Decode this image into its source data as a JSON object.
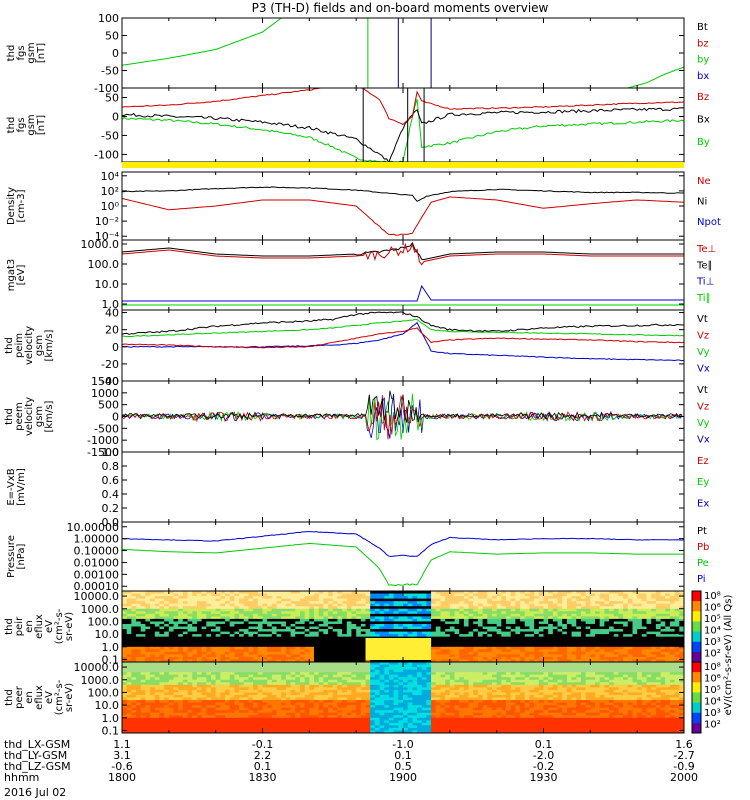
{
  "title": "P3 (TH-D) fields and on-board moments overview",
  "panels": [
    {
      "id": "fgs1",
      "ylabel": [
        "thd",
        "fgs",
        "gsm",
        "[nT]"
      ],
      "ticks": [
        {
          "v": 100,
          "t": "100"
        },
        {
          "v": 50,
          "t": "50"
        },
        {
          "v": 0,
          "t": "0"
        },
        {
          "v": -50,
          "t": "-50"
        },
        {
          "v": -100,
          "t": "-100"
        }
      ],
      "ylim": [
        -100,
        100
      ],
      "log": false,
      "legend": [
        {
          "t": "Bt",
          "c": "#000000"
        },
        {
          "t": "bz",
          "c": "#cc0000"
        },
        {
          "t": "by",
          "c": "#00cc00"
        },
        {
          "t": "bx",
          "c": "#0000cc"
        }
      ]
    },
    {
      "id": "fgs2",
      "ylabel": [
        "thd",
        "fgs",
        "gsm",
        "[nT]"
      ],
      "ticks": [
        {
          "v": 50,
          "t": "50"
        },
        {
          "v": 0,
          "t": "0"
        },
        {
          "v": -50,
          "t": "-50"
        },
        {
          "v": -100,
          "t": "-100"
        }
      ],
      "ylim": [
        -120,
        75
      ],
      "log": false,
      "legend": [
        {
          "t": "Bz",
          "c": "#cc0000"
        },
        {
          "t": "Bx",
          "c": "#000000"
        },
        {
          "t": "By",
          "c": "#00cc00"
        }
      ]
    },
    {
      "id": "dens",
      "ylabel": [
        "Density",
        "[cm-3]"
      ],
      "ticks": [
        {
          "v": 4,
          "t": "10⁴"
        },
        {
          "v": 2,
          "t": "10²"
        },
        {
          "v": 0,
          "t": "10⁰"
        },
        {
          "v": -2,
          "t": "10⁻²"
        },
        {
          "v": -4,
          "t": "10⁻⁴"
        }
      ],
      "ylim": [
        -4.5,
        4.5
      ],
      "log": true,
      "legend": [
        {
          "t": "Ne",
          "c": "#cc0000"
        },
        {
          "t": "Ni",
          "c": "#000000"
        },
        {
          "t": "Npot",
          "c": "#0000cc"
        }
      ]
    },
    {
      "id": "temp",
      "ylabel": [
        "mgat3",
        "[eV]"
      ],
      "ticks": [
        {
          "v": 3,
          "t": "1000.0"
        },
        {
          "v": 2,
          "t": "100.0"
        },
        {
          "v": 1,
          "t": "10.0"
        },
        {
          "v": 0,
          "t": "1.0"
        }
      ],
      "ylim": [
        -0.3,
        3.2
      ],
      "log": true,
      "legend": [
        {
          "t": "Te⊥",
          "c": "#cc0000"
        },
        {
          "t": "Te∥",
          "c": "#000000"
        },
        {
          "t": "Ti⊥",
          "c": "#0000cc"
        },
        {
          "t": "Ti∥",
          "c": "#00cc00"
        }
      ]
    },
    {
      "id": "peim",
      "ylabel": [
        "thd",
        "peim",
        "velocity",
        "gsm",
        "[km/s]"
      ],
      "ticks": [
        {
          "v": 40,
          "t": "40"
        },
        {
          "v": 20,
          "t": "20"
        },
        {
          "v": 0,
          "t": "0"
        },
        {
          "v": -20,
          "t": "-20"
        },
        {
          "v": -40,
          "t": "-40"
        }
      ],
      "ylim": [
        -40,
        43
      ],
      "log": false,
      "legend": [
        {
          "t": "Vt",
          "c": "#000000"
        },
        {
          "t": "Vz",
          "c": "#cc0000"
        },
        {
          "t": "Vy",
          "c": "#00cc00"
        },
        {
          "t": "Vx",
          "c": "#0000cc"
        }
      ]
    },
    {
      "id": "peem",
      "ylabel": [
        "thd",
        "peem",
        "velocity",
        "gsm",
        "[km/s]"
      ],
      "ticks": [
        {
          "v": 1500,
          "t": "1500"
        },
        {
          "v": 1000,
          "t": "1000"
        },
        {
          "v": 500,
          "t": "500"
        },
        {
          "v": 0,
          "t": "0"
        },
        {
          "v": -500,
          "t": "-500"
        },
        {
          "v": -1000,
          "t": "-1000"
        },
        {
          "v": -1500,
          "t": "-1500"
        }
      ],
      "ylim": [
        -1500,
        1500
      ],
      "log": false,
      "legend": [
        {
          "t": "Vt",
          "c": "#000000"
        },
        {
          "t": "Vz",
          "c": "#cc0000"
        },
        {
          "t": "Vy",
          "c": "#00cc00"
        },
        {
          "t": "Vx",
          "c": "#0000cc"
        }
      ]
    },
    {
      "id": "efield",
      "ylabel": [
        "E=-VxB",
        "[mV/m]"
      ],
      "ticks": [
        {
          "v": 1,
          "t": "1.0"
        },
        {
          "v": 0.8,
          "t": "0.8"
        },
        {
          "v": 0.6,
          "t": "0.6"
        },
        {
          "v": 0.4,
          "t": "0.4"
        },
        {
          "v": 0.2,
          "t": "0.2"
        },
        {
          "v": 0,
          "t": "0.0"
        }
      ],
      "ylim": [
        0,
        1
      ],
      "log": false,
      "legend": [
        {
          "t": "Ez",
          "c": "#cc0000"
        },
        {
          "t": "Ey",
          "c": "#00cc00"
        },
        {
          "t": "Ex",
          "c": "#0000cc"
        }
      ]
    },
    {
      "id": "press",
      "ylabel": [
        "Pressure",
        "[nPa]"
      ],
      "ticks": [
        {
          "v": 1,
          "t": "10.00000"
        },
        {
          "v": 0,
          "t": "1.00000"
        },
        {
          "v": -1,
          "t": "0.10000"
        },
        {
          "v": -2,
          "t": "0.01000"
        },
        {
          "v": -3,
          "t": "0.00100"
        },
        {
          "v": -4,
          "t": "0.00010"
        }
      ],
      "ylim": [
        -4.4,
        1.4
      ],
      "log": true,
      "legend": [
        {
          "t": "Pt",
          "c": "#000000"
        },
        {
          "t": "Pb",
          "c": "#cc0000"
        },
        {
          "t": "Pe",
          "c": "#00cc00"
        },
        {
          "t": "Pi",
          "c": "#0000cc"
        }
      ]
    },
    {
      "id": "peir",
      "ylabel": [
        "thd",
        "peir",
        "en",
        "eflux",
        "eV",
        "(cm²-s-",
        "sr-eV)"
      ],
      "ticks": [
        {
          "v": 4,
          "t": "10000.0"
        },
        {
          "v": 3,
          "t": "1000.0"
        },
        {
          "v": 2,
          "t": "100.0"
        },
        {
          "v": 1,
          "t": "10.0"
        },
        {
          "v": 0,
          "t": "1.0"
        },
        {
          "v": -1,
          "t": "0.1"
        }
      ],
      "ylim": [
        -1.2,
        4.4
      ],
      "log": true,
      "colorbar": [
        "10⁸",
        "10⁶",
        "10⁵",
        "10⁴",
        "10³",
        "10²"
      ],
      "cbar_title": "eV/(cm²-s-sr-eV) (All Qs)",
      "legend": []
    },
    {
      "id": "peer",
      "ylabel": [
        "thd",
        "peer",
        "en",
        "eflux",
        "eV",
        "(cm²-s-",
        "sr-eV)"
      ],
      "ticks": [
        {
          "v": 4,
          "t": "10000.0"
        },
        {
          "v": 3,
          "t": "1000.0"
        },
        {
          "v": 2,
          "t": "100.0"
        },
        {
          "v": 1,
          "t": "10.0"
        },
        {
          "v": 0,
          "t": "1.0"
        },
        {
          "v": -1,
          "t": "0.1"
        }
      ],
      "ylim": [
        -1.2,
        4.4
      ],
      "log": true,
      "colorbar": [
        "10⁸",
        "10⁶",
        "10⁵",
        "10⁴",
        "10³",
        "10²"
      ],
      "legend": []
    }
  ],
  "chart_data": {
    "type": "line",
    "title": "P3 (TH-D) fields and on-board moments overview",
    "x_times": [
      "1800",
      "1830",
      "1900",
      "1930",
      "2000"
    ],
    "x_range_minutes": [
      0,
      120
    ],
    "footer_rows": [
      {
        "label": "thd_LX-GSM",
        "values": [
          "1.1",
          "-0.1",
          "-1.0",
          "0.1",
          "1.6"
        ]
      },
      {
        "label": "thd_LY-GSM",
        "values": [
          "3.1",
          "2.2",
          "0.1",
          "-2.0",
          "-2.7"
        ]
      },
      {
        "label": "thd_LZ-GSM",
        "values": [
          "-0.6",
          "0.1",
          "0.5",
          "-0.2",
          "-0.9"
        ]
      },
      {
        "label": "hhmm",
        "values": [
          "1800",
          "1830",
          "1900",
          "1930",
          "2000"
        ]
      }
    ],
    "date_label": "2016 Jul 02",
    "series": {
      "fgs2_bz": {
        "t": [
          0,
          10,
          20,
          30,
          40,
          45,
          50,
          55,
          57,
          60,
          62,
          63,
          64,
          70,
          80,
          90,
          100,
          110,
          120
        ],
        "v": [
          25,
          30,
          40,
          55,
          70,
          80,
          85,
          45,
          -5,
          -20,
          0,
          65,
          40,
          20,
          22,
          25,
          30,
          35,
          38
        ]
      },
      "fgs2_bx": {
        "t": [
          0,
          10,
          20,
          30,
          40,
          45,
          50,
          55,
          57,
          60,
          62,
          63,
          64,
          70,
          80,
          90,
          100,
          110,
          120
        ],
        "v": [
          5,
          0,
          -5,
          -15,
          -30,
          -45,
          -60,
          -100,
          -120,
          -30,
          5,
          15,
          -20,
          5,
          10,
          12,
          15,
          18,
          20
        ]
      },
      "fgs2_by": {
        "t": [
          0,
          10,
          20,
          30,
          40,
          45,
          50,
          55,
          60,
          62,
          63,
          64,
          70,
          80,
          90,
          100,
          110,
          120
        ],
        "v": [
          -5,
          -10,
          -20,
          -35,
          -55,
          -80,
          -110,
          -120,
          -120,
          0,
          45,
          -80,
          -70,
          -40,
          -25,
          -20,
          -15,
          -10
        ]
      },
      "dens_ni": {
        "t": [
          0,
          10,
          20,
          30,
          40,
          50,
          55,
          60,
          62,
          63,
          65,
          70,
          80,
          90,
          100,
          110,
          120
        ],
        "v": [
          1.9,
          2.0,
          2.3,
          2.5,
          2.4,
          2.1,
          1.8,
          1.5,
          1.4,
          0.6,
          1.3,
          1.9,
          2.2,
          2.0,
          1.8,
          1.8,
          1.7
        ]
      },
      "dens_ne": {
        "t": [
          0,
          10,
          20,
          30,
          40,
          50,
          54,
          57,
          60,
          62,
          64,
          66,
          70,
          80,
          90,
          100,
          110,
          120
        ],
        "v": [
          1.0,
          -0.5,
          0.0,
          0.8,
          0.8,
          0.0,
          -2.2,
          -3.8,
          -3.8,
          -3.6,
          -1.5,
          0.5,
          1.2,
          0.8,
          -0.3,
          0.3,
          0.8,
          0.5
        ]
      },
      "temp_tepar": {
        "t": [
          0,
          10,
          20,
          30,
          40,
          50,
          55,
          60,
          62,
          64,
          66,
          70,
          80,
          90,
          100,
          110,
          120
        ],
        "v": [
          2.6,
          2.8,
          2.5,
          2.4,
          2.4,
          2.5,
          2.6,
          2.8,
          3.0,
          2.2,
          2.3,
          2.5,
          2.6,
          2.6,
          2.5,
          2.5,
          2.5
        ]
      },
      "temp_teperp": {
        "t": [
          0,
          10,
          20,
          30,
          40,
          50,
          55,
          60,
          62,
          64,
          66,
          70,
          80,
          90,
          100,
          110,
          120
        ],
        "v": [
          2.5,
          2.7,
          2.4,
          2.3,
          2.3,
          2.4,
          2.5,
          2.7,
          2.9,
          2.1,
          2.2,
          2.4,
          2.5,
          2.5,
          2.4,
          2.4,
          2.4
        ]
      },
      "temp_tiperp": {
        "t": [
          0,
          30,
          60,
          63,
          64,
          66,
          120
        ],
        "v": [
          0.15,
          0.15,
          0.15,
          0.15,
          0.9,
          0.2,
          0.2
        ]
      },
      "temp_tipar": {
        "t": [
          0,
          120
        ],
        "v": [
          -0.05,
          -0.05
        ]
      },
      "peim_vt": {
        "t": [
          0,
          10,
          20,
          30,
          40,
          45,
          50,
          55,
          60,
          63,
          66,
          70,
          80,
          90,
          100,
          110,
          120
        ],
        "v": [
          15,
          18,
          24,
          28,
          30,
          32,
          38,
          40,
          40,
          35,
          25,
          20,
          18,
          22,
          24,
          25,
          26
        ]
      },
      "peim_vz": {
        "t": [
          0,
          10,
          20,
          30,
          40,
          45,
          50,
          55,
          60,
          63,
          66,
          70,
          80,
          90,
          100,
          110,
          120
        ],
        "v": [
          3,
          2,
          0,
          -1,
          0,
          5,
          10,
          15,
          18,
          22,
          5,
          8,
          10,
          9,
          8,
          6,
          5
        ]
      },
      "peim_vy": {
        "t": [
          0,
          10,
          20,
          30,
          40,
          45,
          50,
          55,
          60,
          63,
          66,
          70,
          80,
          90,
          100,
          110,
          120
        ],
        "v": [
          12,
          14,
          16,
          18,
          20,
          22,
          25,
          28,
          30,
          32,
          20,
          18,
          17,
          16,
          15,
          14,
          13
        ]
      },
      "peim_vx": {
        "t": [
          0,
          10,
          20,
          30,
          40,
          45,
          50,
          55,
          60,
          63,
          66,
          70,
          80,
          90,
          100,
          110,
          120
        ],
        "v": [
          0,
          0,
          0,
          0,
          1,
          2,
          4,
          8,
          15,
          28,
          -5,
          -8,
          -10,
          -12,
          -14,
          -15,
          -16
        ]
      },
      "press_pt": {
        "t": [
          0,
          10,
          20,
          30,
          40,
          50,
          55,
          57,
          60,
          63,
          66,
          70,
          80,
          90,
          100,
          110,
          120
        ],
        "v": [
          0.0,
          -0.1,
          -0.2,
          0.2,
          0.6,
          0.4,
          -0.8,
          -1.5,
          -1.4,
          -1.5,
          -0.5,
          0.1,
          -0.1,
          0.0,
          0.0,
          -0.1,
          -0.1
        ]
      },
      "press_pe": {
        "t": [
          0,
          10,
          20,
          30,
          40,
          50,
          55,
          57,
          60,
          63,
          66,
          70,
          80,
          90,
          100,
          110,
          120
        ],
        "v": [
          -0.9,
          -1.1,
          -1.2,
          -0.8,
          -0.4,
          -0.7,
          -2.5,
          -3.9,
          -3.9,
          -3.8,
          -1.8,
          -1.1,
          -1.3,
          -1.2,
          -1.2,
          -1.3,
          -1.3
        ]
      }
    }
  }
}
